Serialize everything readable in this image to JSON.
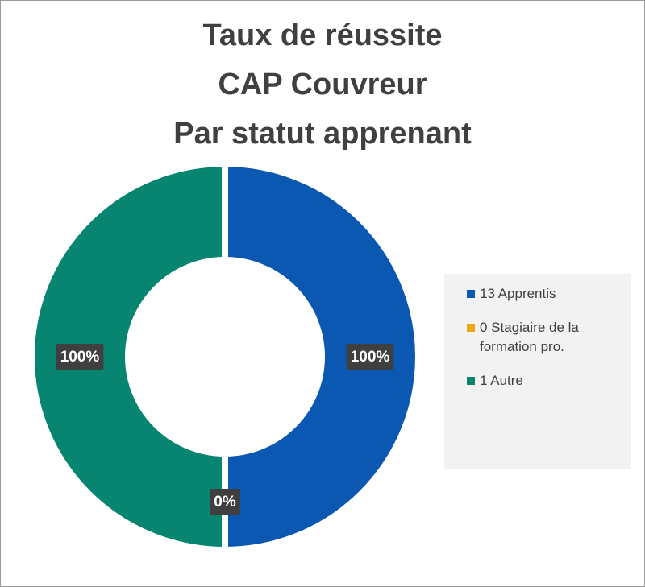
{
  "chart_data": {
    "type": "doughnut",
    "title": "Taux de réussite\nCAP Couvreur\nPar statut apprenant",
    "categories": [
      "13 Apprentis",
      "0 Stagiaire de la formation pro.",
      "1 Autre"
    ],
    "values": [
      100,
      0,
      100
    ],
    "value_labels": [
      "100%",
      "0%",
      "100%"
    ],
    "colors": [
      "#0a58b2",
      "#f0a818",
      "#088570"
    ],
    "legend": "right"
  }
}
